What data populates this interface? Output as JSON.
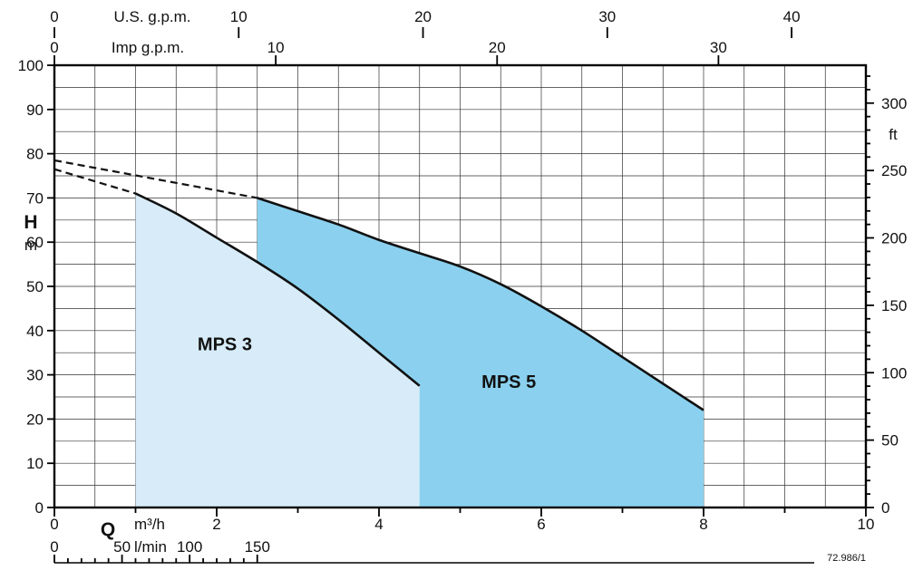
{
  "chart_data": {
    "type": "area",
    "code": "72.986/1",
    "x_axis_m3h": {
      "q_label": "Q",
      "label": "m³/h",
      "min": 0,
      "max": 10,
      "major_ticks": [
        0,
        2,
        4,
        6,
        8,
        10
      ],
      "grid_step": 0.5
    },
    "x_axis_lmin": {
      "label": "l/min",
      "ticks": [
        0,
        50,
        100,
        150
      ],
      "lmin_per_m3h": 60,
      "minor_step": 10
    },
    "x_axis_usgpm": {
      "label": "U.S. g.p.m.",
      "ticks": [
        0,
        10,
        20,
        30,
        40
      ],
      "m3h_per_unit": 0.22712
    },
    "x_axis_impgpm": {
      "label": "Imp g.p.m.",
      "ticks": [
        0,
        10,
        20,
        30
      ],
      "m3h_per_unit": 0.27277
    },
    "y_axis_m": {
      "label": "H",
      "unit": "m",
      "min": 0,
      "max": 100,
      "major_ticks": [
        0,
        10,
        20,
        30,
        40,
        50,
        60,
        70,
        80,
        90,
        100
      ],
      "grid_step": 5
    },
    "y_axis_ft": {
      "label": "ft",
      "ticks": [
        0,
        50,
        100,
        150,
        200,
        250,
        300
      ],
      "m_per_unit": 0.3048,
      "minor_step": 10,
      "minor_max": 320
    },
    "series": [
      {
        "name": "MPS 3",
        "fill_color": "#d7ecf8",
        "line_color": "#111111",
        "label_at": {
          "x": 2.1,
          "y": 37
        },
        "x_start": 1.0,
        "x_end": 4.5,
        "curve": [
          [
            1.0,
            71
          ],
          [
            1.5,
            66.5
          ],
          [
            2.0,
            61
          ],
          [
            2.5,
            55.5
          ],
          [
            3.0,
            49.5
          ],
          [
            3.5,
            42.5
          ],
          [
            4.0,
            35
          ],
          [
            4.5,
            27.5
          ]
        ],
        "dashed_extension": [
          [
            0,
            76.5
          ],
          [
            1.0,
            71
          ]
        ]
      },
      {
        "name": "MPS 5",
        "fill_color": "#8bd1ef",
        "line_color": "#111111",
        "label_at": {
          "x": 5.6,
          "y": 28.5
        },
        "x_start": 2.5,
        "x_end": 8.0,
        "curve": [
          [
            2.5,
            70
          ],
          [
            3.0,
            67
          ],
          [
            3.5,
            64
          ],
          [
            4.0,
            60.5
          ],
          [
            4.5,
            57.5
          ],
          [
            5.0,
            54.5
          ],
          [
            5.5,
            50.5
          ],
          [
            6.0,
            45.5
          ],
          [
            6.5,
            40
          ],
          [
            7.0,
            34
          ],
          [
            7.5,
            28
          ],
          [
            8.0,
            22
          ]
        ],
        "dashed_extension": [
          [
            0,
            78.5
          ],
          [
            2.5,
            70
          ]
        ]
      }
    ]
  }
}
